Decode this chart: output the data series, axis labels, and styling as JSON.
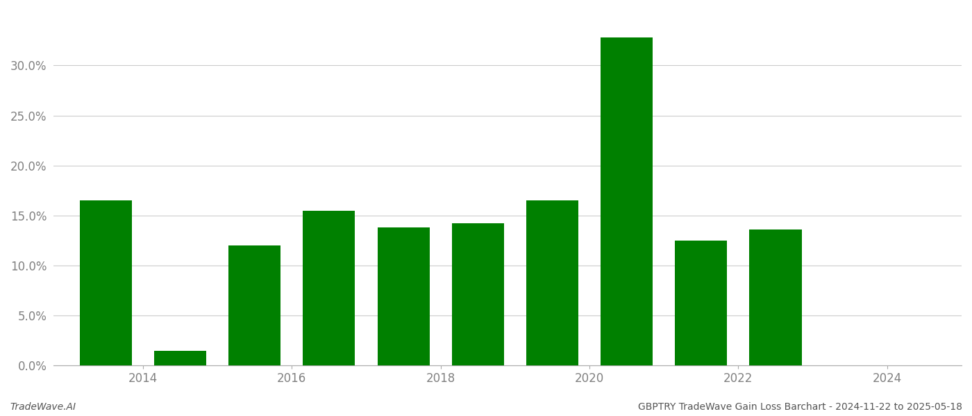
{
  "bar_centers": [
    2013.5,
    2014.5,
    2015.5,
    2016.5,
    2017.5,
    2018.5,
    2019.5,
    2020.5,
    2021.5,
    2022.5,
    2023.5
  ],
  "values": [
    0.165,
    0.015,
    0.12,
    0.155,
    0.138,
    0.142,
    0.165,
    0.328,
    0.125,
    0.136,
    0.0
  ],
  "bar_color": "#008000",
  "background_color": "#ffffff",
  "grid_color": "#cccccc",
  "ylabel_color": "#808080",
  "xlabel_color": "#808080",
  "ylim": [
    0,
    0.355
  ],
  "yticks": [
    0.0,
    0.05,
    0.1,
    0.15,
    0.2,
    0.25,
    0.3
  ],
  "xticks": [
    2014,
    2016,
    2018,
    2020,
    2022,
    2024
  ],
  "xlim": [
    2012.8,
    2025.0
  ],
  "footer_left": "TradeWave.AI",
  "footer_right": "GBPTRY TradeWave Gain Loss Barchart - 2024-11-22 to 2025-05-18",
  "bar_width": 0.7
}
